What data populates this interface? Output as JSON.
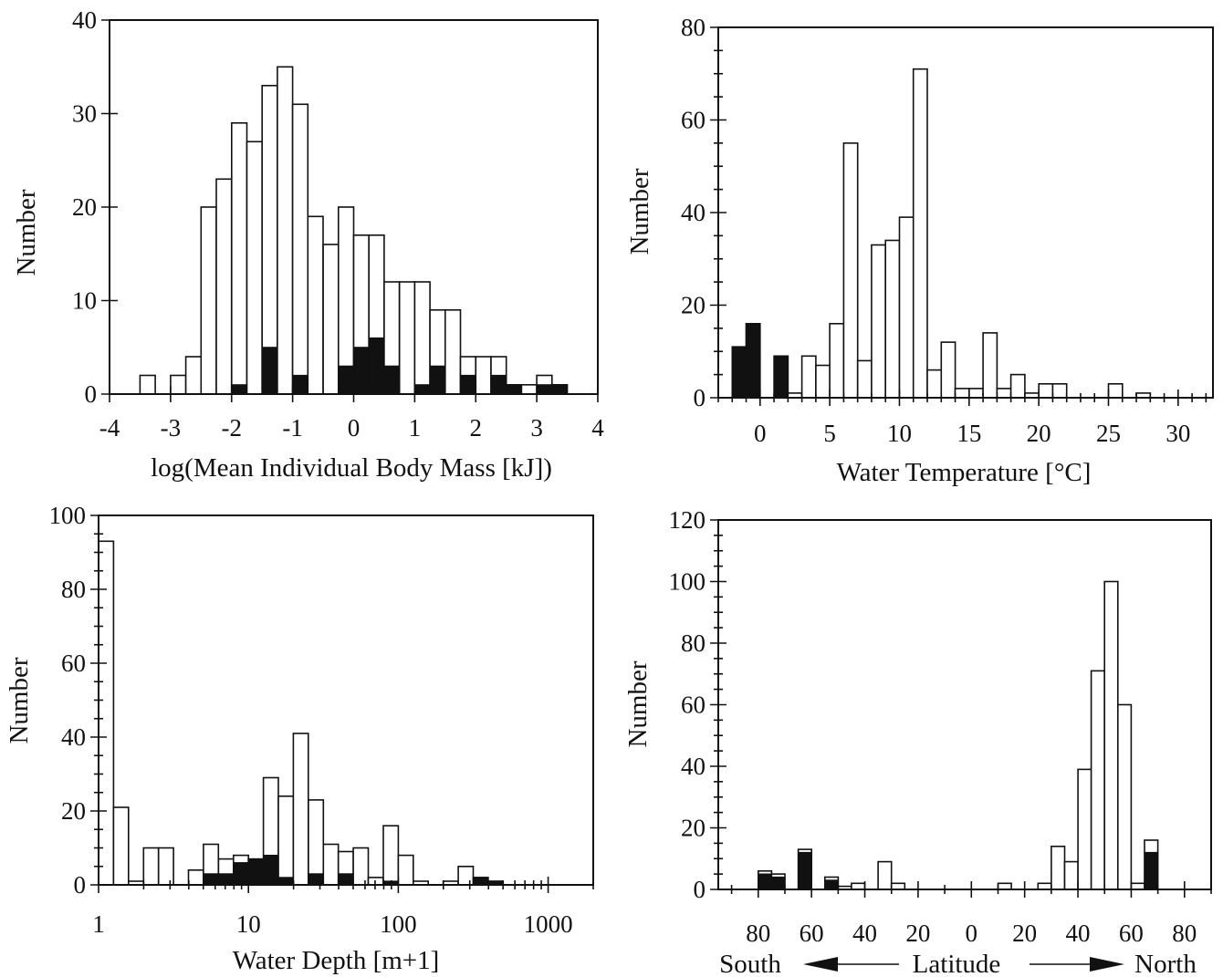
{
  "chart_data": [
    {
      "id": "body-mass",
      "type": "bar",
      "xlabel": "log(Mean Individual Body Mass [kJ])",
      "ylabel": "Number",
      "xscale": "linear",
      "xlim": [
        -4,
        4
      ],
      "ylim": [
        0,
        40
      ],
      "xticks": [
        -4,
        -3,
        -2,
        -1,
        0,
        1,
        2,
        3,
        4
      ],
      "yticks": [
        0,
        10,
        20,
        30,
        40
      ],
      "bin_width": 0.25,
      "series": [
        {
          "fill": "#ffffff",
          "x": [
            -3.5,
            -3,
            -2.75,
            -2.5,
            -2.25,
            -2,
            -1.75,
            -1.5,
            -1.25,
            -1,
            -0.75,
            -0.5,
            -0.25,
            0,
            0.25,
            0.5,
            0.75,
            1,
            1.25,
            1.5,
            1.75,
            2,
            2.25,
            2.5,
            2.75,
            3,
            3.25
          ],
          "values": [
            2,
            2,
            4,
            20,
            23,
            29,
            27,
            33,
            35,
            31,
            19,
            16,
            20,
            17,
            17,
            12,
            12,
            12,
            9,
            9,
            4,
            4,
            4,
            1,
            1,
            2,
            1
          ]
        },
        {
          "fill": "#111111",
          "x": [
            -2,
            -1.5,
            -1,
            -0.25,
            0,
            0.25,
            0.5,
            1,
            1.25,
            1.75,
            2.25,
            2.5,
            3,
            3.25
          ],
          "values": [
            1,
            5,
            2,
            3,
            5,
            6,
            3,
            1,
            3,
            2,
            2,
            1,
            1,
            1
          ]
        }
      ]
    },
    {
      "id": "water-temperature",
      "type": "bar",
      "xlabel": "Water Temperature [°C]",
      "ylabel": "Number",
      "xscale": "linear",
      "xlim": [
        -3,
        32.5
      ],
      "ylim": [
        0,
        80
      ],
      "xticks": [
        0,
        5,
        10,
        15,
        20,
        25,
        30
      ],
      "yticks": [
        0,
        20,
        40,
        60,
        80
      ],
      "minor_x_every": 1,
      "minor_y_every": 5,
      "bin_width": 1,
      "series": [
        {
          "fill": "#ffffff",
          "x": [
            -2,
            -1,
            1,
            2,
            3,
            4,
            5,
            6,
            7,
            8,
            9,
            10,
            11,
            12,
            13,
            14,
            15,
            16,
            17,
            18,
            19,
            20,
            21,
            25,
            27
          ],
          "values": [
            11,
            16,
            9,
            1,
            9,
            7,
            16,
            55,
            8,
            33,
            34,
            39,
            71,
            6,
            12,
            2,
            2,
            14,
            2,
            5,
            1,
            3,
            3,
            3,
            1
          ]
        },
        {
          "fill": "#111111",
          "x": [
            -2,
            -1,
            1
          ],
          "values": [
            11,
            16,
            9
          ]
        }
      ]
    },
    {
      "id": "water-depth",
      "type": "bar",
      "xlabel": "Water Depth [m+1]",
      "ylabel": "Number",
      "xscale": "log",
      "xlim": [
        1,
        2000
      ],
      "ylim": [
        0,
        100
      ],
      "xticks": [
        1,
        10,
        100,
        1000
      ],
      "yticks": [
        0,
        20,
        40,
        60,
        80,
        100
      ],
      "minor_y_every": 5,
      "bin_width_log10": 0.1,
      "series": [
        {
          "fill": "#ffffff",
          "x_bin_start_log10": [
            0,
            0.1,
            0.2,
            0.3,
            0.4,
            0.6,
            0.7,
            0.8,
            0.9,
            1.0,
            1.1,
            1.2,
            1.3,
            1.4,
            1.5,
            1.6,
            1.7,
            1.8,
            1.9,
            2.0,
            2.1,
            2.2,
            2.3,
            2.4,
            2.5,
            2.6
          ],
          "values": [
            93,
            21,
            1,
            10,
            10,
            4,
            11,
            7,
            8,
            7,
            29,
            24,
            41,
            23,
            11,
            9,
            10,
            2,
            16,
            8,
            1,
            0,
            1,
            5,
            2,
            1
          ]
        },
        {
          "fill": "#111111",
          "x_bin_start_log10": [
            0.7,
            0.8,
            0.9,
            1.0,
            1.1,
            1.2,
            1.3,
            1.4,
            1.5,
            1.6,
            1.9,
            2.5,
            2.6
          ],
          "values": [
            3,
            3,
            6,
            7,
            8,
            2,
            0,
            3,
            0,
            3,
            1,
            2,
            1
          ]
        }
      ]
    },
    {
      "id": "latitude",
      "type": "bar",
      "xlabel": "Latitude",
      "ylabel": "Number",
      "xscale": "linear",
      "xlim": [
        -95,
        90
      ],
      "ylim": [
        0,
        120
      ],
      "xticks": [
        -80,
        -60,
        -40,
        -20,
        0,
        20,
        40,
        60,
        80
      ],
      "xticklabels": [
        "80",
        "60",
        "40",
        "20",
        "0",
        "20",
        "40",
        "60",
        "80"
      ],
      "yticks": [
        0,
        20,
        40,
        60,
        80,
        100,
        120
      ],
      "minor_x_every": 10,
      "minor_y_every": 5,
      "bin_width": 5,
      "direction_labels": {
        "left": "South",
        "right": "North"
      },
      "series": [
        {
          "fill": "#ffffff",
          "x": [
            -80,
            -75,
            -65,
            -55,
            -50,
            -45,
            -35,
            -30,
            10,
            25,
            30,
            35,
            40,
            45,
            50,
            55,
            60,
            65
          ],
          "values": [
            6,
            5,
            13,
            4,
            1,
            2,
            9,
            2,
            2,
            2,
            14,
            9,
            39,
            71,
            100,
            60,
            2,
            16
          ]
        },
        {
          "fill": "#111111",
          "x": [
            -80,
            -75,
            -65,
            -55,
            65
          ],
          "values": [
            5,
            4,
            12,
            3,
            12
          ]
        }
      ]
    }
  ]
}
